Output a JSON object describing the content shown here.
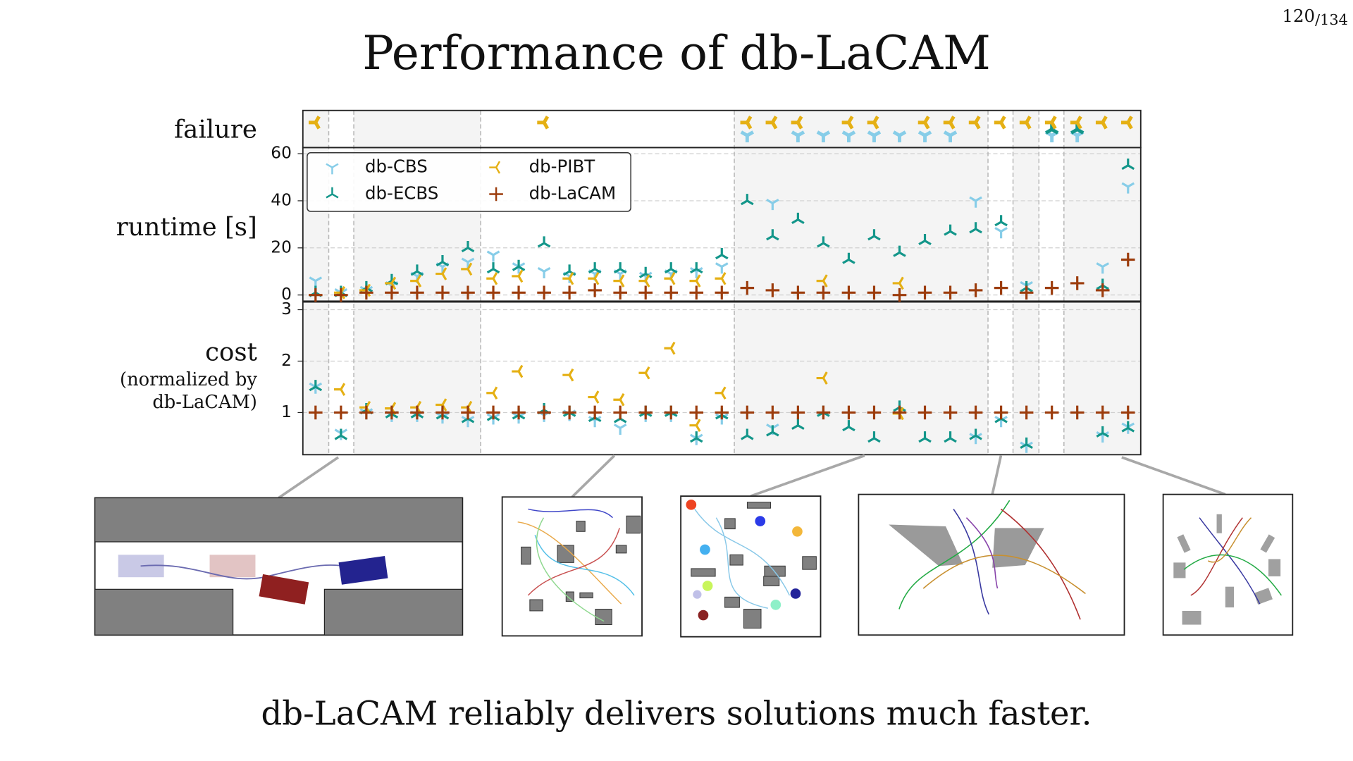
{
  "page_number": "120",
  "page_total": "/134",
  "title": "Performance of db-LaCAM",
  "caption": "db-LaCAM reliably delivers solutions much faster.",
  "chart_data": [
    {
      "type": "scatter",
      "failure_label": "failure",
      "ylabel": "runtime [s]",
      "categories": [
        null,
        null,
        null,
        null,
        null,
        null,
        null,
        null,
        null,
        null,
        null,
        null,
        null,
        null,
        null,
        null,
        null,
        null,
        null,
        null,
        null,
        null,
        null,
        null,
        null,
        null,
        null,
        null,
        null,
        null,
        null,
        null,
        null
      ],
      "ylim": [
        -2.6,
        62.6
      ],
      "yticks": [
        0,
        20,
        40,
        60
      ],
      "grid": true,
      "legend": "upper left",
      "series": [
        {
          "name": "db-CBS",
          "color": "#87cde8",
          "marker": "tri_down",
          "values": [
            6,
            1,
            2,
            4,
            8,
            12,
            14,
            17,
            12,
            10,
            8,
            9,
            9,
            8,
            9,
            10,
            12,
            null,
            39,
            null,
            null,
            null,
            null,
            null,
            null,
            null,
            40,
            27,
            4,
            null,
            null,
            12,
            46
          ]
        },
        {
          "name": "db-ECBS",
          "color": "#13968a",
          "marker": "tri_up",
          "values": [
            1,
            1,
            3,
            6,
            10,
            14,
            20,
            11,
            12,
            22,
            10,
            11,
            11,
            9,
            11,
            11,
            17,
            40,
            25,
            32,
            22,
            15,
            25,
            18,
            23,
            27,
            28,
            31,
            3,
            null,
            null,
            4,
            55
          ]
        },
        {
          "name": "db-PIBT",
          "color": "#e5b014",
          "marker": "tri_left",
          "values": [
            null,
            1,
            2,
            5,
            6,
            9,
            11,
            7,
            8,
            null,
            7,
            7,
            6,
            6,
            7,
            6,
            7,
            null,
            null,
            null,
            6,
            null,
            null,
            5,
            null,
            null,
            null,
            null,
            null,
            null,
            null,
            null,
            null
          ]
        },
        {
          "name": "db-LaCAM",
          "color": "#9c3c0c",
          "marker": "plus",
          "values": [
            0,
            0,
            1,
            1,
            1,
            1,
            1,
            1,
            1,
            1,
            1,
            2,
            1,
            1,
            1,
            1,
            1,
            3,
            2,
            1,
            1,
            1,
            1,
            0,
            1,
            1,
            2,
            3,
            1,
            3,
            5,
            2,
            15
          ]
        }
      ]
    },
    {
      "type": "scatter",
      "ylabel": [
        "cost",
        "(normalized by",
        "db-LaCAM)"
      ],
      "ylim": [
        0.18,
        3.15
      ],
      "yticks": [
        1,
        2,
        3
      ],
      "grid": true,
      "series": [
        {
          "color": "#87cde8",
          "marker": "tri_down",
          "values": [
            1.5,
            0.6,
            1.0,
            0.95,
            0.95,
            0.92,
            0.85,
            0.9,
            0.92,
            0.95,
            0.97,
            0.85,
            0.7,
            0.95,
            0.95,
            0.5,
            0.9,
            null,
            0.7,
            null,
            null,
            null,
            null,
            null,
            null,
            null,
            0.52,
            0.85,
            0.35,
            null,
            null,
            0.55,
            0.72
          ]
        },
        {
          "color": "#13968a",
          "marker": "tri_up",
          "values": [
            1.5,
            0.55,
            1.05,
            0.97,
            0.97,
            0.95,
            0.88,
            0.92,
            0.95,
            1.05,
            1.0,
            0.9,
            0.88,
            1.0,
            1.0,
            0.5,
            0.95,
            0.55,
            0.62,
            0.75,
            1.0,
            0.72,
            0.5,
            1.1,
            0.5,
            0.5,
            0.55,
            0.88,
            0.38,
            null,
            null,
            0.6,
            0.7
          ]
        },
        {
          "color": "#e5b014",
          "marker": "tri_left",
          "values": [
            null,
            1.45,
            1.1,
            1.08,
            1.1,
            1.15,
            1.1,
            1.38,
            1.8,
            null,
            1.73,
            1.3,
            1.25,
            1.77,
            2.25,
            0.75,
            1.38,
            null,
            null,
            null,
            1.67,
            null,
            null,
            0.98,
            null,
            null,
            null,
            null,
            null,
            null,
            null,
            null,
            null
          ]
        },
        {
          "color": "#9c3c0c",
          "marker": "plus",
          "values": [
            1,
            1,
            1,
            1,
            1,
            1,
            1,
            1,
            1,
            1,
            1,
            1,
            1,
            1,
            1,
            1,
            1,
            1,
            1,
            1,
            1,
            1,
            1,
            1,
            1,
            1,
            1,
            1,
            1,
            1,
            1,
            1,
            1
          ]
        }
      ]
    }
  ]
}
